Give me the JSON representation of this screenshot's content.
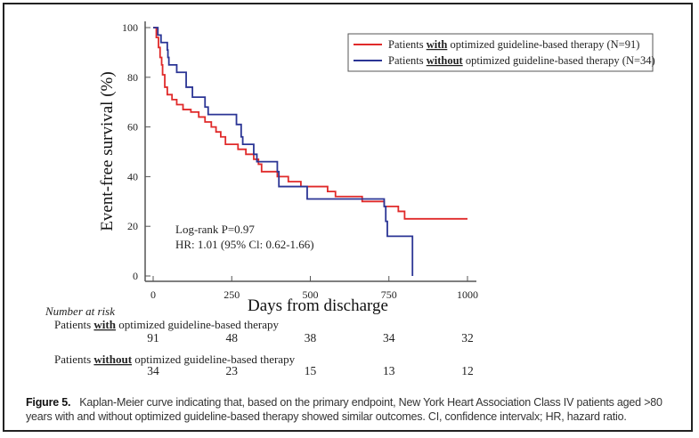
{
  "chart_data": {
    "type": "line",
    "subtype": "kaplan-meier",
    "xlabel": "Days from discharge",
    "ylabel": "Event-free survival (%)",
    "xlim": [
      0,
      1000
    ],
    "ylim": [
      0,
      100
    ],
    "xticks": [
      0,
      250,
      500,
      750,
      1000
    ],
    "yticks": [
      0,
      20,
      40,
      60,
      80,
      100
    ],
    "grid": false,
    "legend_position": "top-right",
    "series": [
      {
        "name": "with",
        "legend_prefix": "Patients ",
        "legend_bold": "with",
        "legend_suffix": " optimized guideline-based therapy (N=91)",
        "color": "#e02a2a",
        "steps": [
          [
            0,
            100
          ],
          [
            10,
            96
          ],
          [
            17,
            92
          ],
          [
            22,
            88
          ],
          [
            27,
            85
          ],
          [
            30,
            81
          ],
          [
            37,
            76
          ],
          [
            45,
            73
          ],
          [
            60,
            71
          ],
          [
            75,
            69
          ],
          [
            95,
            67
          ],
          [
            120,
            66
          ],
          [
            145,
            64
          ],
          [
            165,
            62
          ],
          [
            185,
            60
          ],
          [
            200,
            58
          ],
          [
            215,
            56
          ],
          [
            230,
            53
          ],
          [
            270,
            51
          ],
          [
            295,
            49
          ],
          [
            320,
            47
          ],
          [
            335,
            45
          ],
          [
            345,
            42
          ],
          [
            395,
            40
          ],
          [
            430,
            38
          ],
          [
            470,
            36
          ],
          [
            555,
            34
          ],
          [
            580,
            32
          ],
          [
            665,
            30
          ],
          [
            735,
            28
          ],
          [
            780,
            26
          ],
          [
            800,
            23
          ],
          [
            1000,
            23
          ]
        ]
      },
      {
        "name": "without",
        "legend_prefix": "Patients ",
        "legend_bold": "without",
        "legend_suffix": " optimized guideline-based therapy (N=34)",
        "color": "#2b3595",
        "steps": [
          [
            0,
            100
          ],
          [
            15,
            97
          ],
          [
            25,
            94
          ],
          [
            45,
            91
          ],
          [
            47,
            88
          ],
          [
            50,
            85
          ],
          [
            75,
            82
          ],
          [
            105,
            76
          ],
          [
            125,
            72
          ],
          [
            165,
            68
          ],
          [
            175,
            65
          ],
          [
            265,
            61
          ],
          [
            280,
            56
          ],
          [
            285,
            53
          ],
          [
            320,
            49
          ],
          [
            330,
            46
          ],
          [
            395,
            42
          ],
          [
            400,
            36
          ],
          [
            490,
            31
          ],
          [
            730,
            31
          ],
          [
            735,
            28
          ],
          [
            740,
            22
          ],
          [
            745,
            16
          ],
          [
            825,
            16
          ],
          [
            825,
            0
          ]
        ]
      }
    ],
    "annotations": [
      "Log-rank P=0.97",
      "HR: 1.01 (95% Cl: 0.62-1.66)"
    ]
  },
  "risk_table": {
    "title": "Number at risk",
    "rows": [
      {
        "prefix": "Patients ",
        "bold": "with",
        "suffix": " optimized guideline-based therapy",
        "values": [
          "91",
          "48",
          "38",
          "34",
          "32"
        ]
      },
      {
        "prefix": "Patients ",
        "bold": "without",
        "suffix": " optimized guideline-based therapy",
        "values": [
          "34",
          "23",
          "15",
          "13",
          "12"
        ]
      }
    ]
  },
  "caption": {
    "label": "Figure 5.",
    "text": "Kaplan-Meier curve indicating that, based on the primary endpoint, New York Heart Association Class IV patients aged >80 years with and without optimized guideline-based therapy showed similar outcomes. CI, confidence intervalx; HR, hazard ratio."
  }
}
